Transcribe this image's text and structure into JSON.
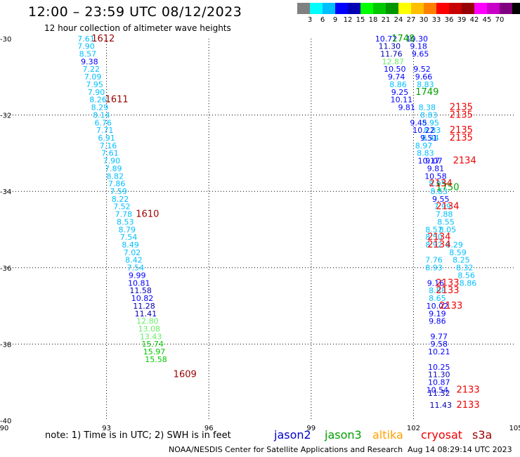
{
  "header": {
    "title": "12:00 – 23:59 UTC 08/12/2023",
    "subtitle": "12 hour collection of altimeter wave heights"
  },
  "scale": {
    "colors": [
      "#808080",
      "#00ffff",
      "#00bfff",
      "#0000ff",
      "#0000b4",
      "#00ff00",
      "#00c800",
      "#009600",
      "#ffff00",
      "#ffbf00",
      "#ff8000",
      "#ff0000",
      "#c80000",
      "#960000",
      "#ff00ff",
      "#c800c8",
      "#800080",
      "#000000"
    ],
    "labels": [
      "3",
      "6",
      "9",
      "12",
      "15",
      "18",
      "21",
      "24",
      "27",
      "30",
      "33",
      "36",
      "39",
      "42",
      "45",
      "70"
    ],
    "unit": "(ft)"
  },
  "footer": {
    "note": "note: 1) Time is in UTC; 2) SWH is in feet",
    "credit": "NOAA/NESDIS Center for Satellite Applications and Research",
    "timestamp": "Aug 14 08:29:14 UTC 2023",
    "legend": [
      {
        "name": "jason2",
        "color": "#0000cc"
      },
      {
        "name": "jason3",
        "color": "#00a000"
      },
      {
        "name": "altika",
        "color": "#ffa000"
      },
      {
        "name": "cryosat",
        "color": "#ee0000"
      },
      {
        "name": "s3a",
        "color": "#990000"
      }
    ]
  },
  "chart_data": {
    "type": "scatter",
    "xlim": [
      90,
      105
    ],
    "ylim": [
      -40,
      -30
    ],
    "x_ticks": [
      90,
      93,
      96,
      99,
      102,
      105
    ],
    "y_ticks": [
      -30,
      -32,
      -34,
      -36,
      -38,
      -40
    ],
    "x_tick_labels": [
      "90",
      "93",
      "96",
      "99",
      "102",
      "105"
    ],
    "y_tick_labels": [
      "-30",
      "-32",
      "-34",
      "-36",
      "-38",
      "-40"
    ],
    "grid": true,
    "points": [
      {
        "lon": 92.4,
        "lat": -30.07,
        "swh": "7.61",
        "color": "#00bfff"
      },
      {
        "lon": 92.4,
        "lat": -30.27,
        "swh": "7.90",
        "color": "#00bfff"
      },
      {
        "lon": 92.45,
        "lat": -30.47,
        "swh": "8.57",
        "color": "#00bfff"
      },
      {
        "lon": 92.5,
        "lat": -30.67,
        "swh": "9.38",
        "color": "#0000ff"
      },
      {
        "lon": 92.55,
        "lat": -30.87,
        "swh": "7.22",
        "color": "#00bfff"
      },
      {
        "lon": 92.6,
        "lat": -31.07,
        "swh": "7.09",
        "color": "#00bfff"
      },
      {
        "lon": 92.65,
        "lat": -31.27,
        "swh": "7.95",
        "color": "#00bfff"
      },
      {
        "lon": 92.7,
        "lat": -31.47,
        "swh": "7.90",
        "color": "#00bfff"
      },
      {
        "lon": 92.75,
        "lat": -31.67,
        "swh": "8.26",
        "color": "#00bfff"
      },
      {
        "lon": 92.8,
        "lat": -31.87,
        "swh": "8.29",
        "color": "#00bfff"
      },
      {
        "lon": 92.85,
        "lat": -32.07,
        "swh": "8.14",
        "color": "#00bfff"
      },
      {
        "lon": 92.9,
        "lat": -32.27,
        "swh": "6.76",
        "color": "#00bfff"
      },
      {
        "lon": 92.95,
        "lat": -32.47,
        "swh": "7.71",
        "color": "#00bfff"
      },
      {
        "lon": 93.0,
        "lat": -32.67,
        "swh": "6.91",
        "color": "#00bfff"
      },
      {
        "lon": 93.05,
        "lat": -32.87,
        "swh": "7.16",
        "color": "#00bfff"
      },
      {
        "lon": 93.1,
        "lat": -33.07,
        "swh": "7.61",
        "color": "#00bfff"
      },
      {
        "lon": 93.15,
        "lat": -33.27,
        "swh": "7.90",
        "color": "#00bfff"
      },
      {
        "lon": 93.2,
        "lat": -33.47,
        "swh": "7.89",
        "color": "#00bfff"
      },
      {
        "lon": 93.25,
        "lat": -33.67,
        "swh": "8.82",
        "color": "#00bfff"
      },
      {
        "lon": 93.3,
        "lat": -33.87,
        "swh": "7.86",
        "color": "#00bfff"
      },
      {
        "lon": 93.35,
        "lat": -34.07,
        "swh": "7.59",
        "color": "#00bfff"
      },
      {
        "lon": 93.4,
        "lat": -34.27,
        "swh": "8.22",
        "color": "#00bfff"
      },
      {
        "lon": 93.45,
        "lat": -34.47,
        "swh": "7.52",
        "color": "#00bfff"
      },
      {
        "lon": 93.5,
        "lat": -34.67,
        "swh": "7.78",
        "color": "#00bfff"
      },
      {
        "lon": 93.55,
        "lat": -34.87,
        "swh": "8.53",
        "color": "#00bfff"
      },
      {
        "lon": 93.6,
        "lat": -35.07,
        "swh": "8.79",
        "color": "#00bfff"
      },
      {
        "lon": 93.65,
        "lat": -35.27,
        "swh": "7.54",
        "color": "#00bfff"
      },
      {
        "lon": 93.7,
        "lat": -35.47,
        "swh": "8.49",
        "color": "#00bfff"
      },
      {
        "lon": 93.75,
        "lat": -35.67,
        "swh": "7.02",
        "color": "#00bfff"
      },
      {
        "lon": 93.8,
        "lat": -35.87,
        "swh": "8.42",
        "color": "#00bfff"
      },
      {
        "lon": 93.85,
        "lat": -36.07,
        "swh": "7.54",
        "color": "#00bfff"
      },
      {
        "lon": 93.9,
        "lat": -36.27,
        "swh": "9.99",
        "color": "#0000ff"
      },
      {
        "lon": 93.95,
        "lat": -36.47,
        "swh": "10.81",
        "color": "#0000ff"
      },
      {
        "lon": 94.0,
        "lat": -36.67,
        "swh": "11.58",
        "color": "#0000b4"
      },
      {
        "lon": 94.05,
        "lat": -36.87,
        "swh": "10.82",
        "color": "#0000ff"
      },
      {
        "lon": 94.1,
        "lat": -37.07,
        "swh": "11.28",
        "color": "#0000b4"
      },
      {
        "lon": 94.15,
        "lat": -37.27,
        "swh": "11.41",
        "color": "#0000b4"
      },
      {
        "lon": 94.2,
        "lat": -37.47,
        "swh": "12.80",
        "color": "#66ee66"
      },
      {
        "lon": 94.25,
        "lat": -37.67,
        "swh": "13.08",
        "color": "#66ee66"
      },
      {
        "lon": 94.3,
        "lat": -37.87,
        "swh": "13.43",
        "color": "#66ee66"
      },
      {
        "lon": 94.35,
        "lat": -38.07,
        "swh": "15.74",
        "color": "#00c800"
      },
      {
        "lon": 94.4,
        "lat": -38.27,
        "swh": "15.97",
        "color": "#00c800"
      },
      {
        "lon": 94.45,
        "lat": -38.47,
        "swh": "15.58",
        "color": "#00c800"
      },
      {
        "lon": 101.2,
        "lat": -30.07,
        "swh": "10.72",
        "color": "#0000ff"
      },
      {
        "lon": 101.3,
        "lat": -30.27,
        "swh": "11.30",
        "color": "#0000b4"
      },
      {
        "lon": 101.35,
        "lat": -30.47,
        "swh": "11.76",
        "color": "#0000b4"
      },
      {
        "lon": 101.4,
        "lat": -30.67,
        "swh": "12.87",
        "color": "#66ee66"
      },
      {
        "lon": 101.45,
        "lat": -30.87,
        "swh": "10.50",
        "color": "#0000ff"
      },
      {
        "lon": 101.5,
        "lat": -31.07,
        "swh": "9.74",
        "color": "#0000ff"
      },
      {
        "lon": 101.55,
        "lat": -31.27,
        "swh": "8.86",
        "color": "#00bfff"
      },
      {
        "lon": 101.6,
        "lat": -31.47,
        "swh": "9.25",
        "color": "#0000ff"
      },
      {
        "lon": 101.65,
        "lat": -31.67,
        "swh": "10.11",
        "color": "#0000ff"
      },
      {
        "lon": 101.8,
        "lat": -31.87,
        "swh": "9.81",
        "color": "#0000ff"
      },
      {
        "lon": 102.1,
        "lat": -30.07,
        "swh": "10.30",
        "color": "#0000ff"
      },
      {
        "lon": 102.15,
        "lat": -30.27,
        "swh": "9.18",
        "color": "#0000ff"
      },
      {
        "lon": 102.2,
        "lat": -30.47,
        "swh": "9.65",
        "color": "#0000ff"
      },
      {
        "lon": 102.25,
        "lat": -30.87,
        "swh": "9.52",
        "color": "#0000ff"
      },
      {
        "lon": 102.3,
        "lat": -31.07,
        "swh": "9.66",
        "color": "#0000ff"
      },
      {
        "lon": 102.35,
        "lat": -31.27,
        "swh": "8.83",
        "color": "#00bfff"
      },
      {
        "lon": 102.4,
        "lat": -31.87,
        "swh": "8.38",
        "color": "#00bfff"
      },
      {
        "lon": 102.45,
        "lat": -32.07,
        "swh": "8.83",
        "color": "#00bfff"
      },
      {
        "lon": 102.5,
        "lat": -32.27,
        "swh": "8.95",
        "color": "#00bfff"
      },
      {
        "lon": 102.55,
        "lat": -32.47,
        "swh": "8.83",
        "color": "#00bfff"
      },
      {
        "lon": 102.5,
        "lat": -32.67,
        "swh": "8.44",
        "color": "#00bfff"
      },
      {
        "lon": 102.6,
        "lat": -33.27,
        "swh": "9.07",
        "color": "#0000ff"
      },
      {
        "lon": 102.65,
        "lat": -33.47,
        "swh": "9.81",
        "color": "#0000ff"
      },
      {
        "lon": 102.75,
        "lat": -34.07,
        "swh": "8.63",
        "color": "#00bfff"
      },
      {
        "lon": 102.8,
        "lat": -34.27,
        "swh": "9.55",
        "color": "#0000ff"
      },
      {
        "lon": 102.85,
        "lat": -34.47,
        "swh": "7.99",
        "color": "#00bfff"
      },
      {
        "lon": 102.9,
        "lat": -34.67,
        "swh": "7.88",
        "color": "#00bfff"
      },
      {
        "lon": 102.95,
        "lat": -34.87,
        "swh": "8.55",
        "color": "#00bfff"
      },
      {
        "lon": 103.0,
        "lat": -35.07,
        "swh": "8.05",
        "color": "#00bfff"
      },
      {
        "lon": 103.2,
        "lat": -35.47,
        "swh": "8.29",
        "color": "#00bfff"
      },
      {
        "lon": 103.3,
        "lat": -35.67,
        "swh": "8.59",
        "color": "#00bfff"
      },
      {
        "lon": 103.4,
        "lat": -35.87,
        "swh": "8.25",
        "color": "#00bfff"
      },
      {
        "lon": 103.5,
        "lat": -36.07,
        "swh": "8.32",
        "color": "#00bfff"
      },
      {
        "lon": 103.55,
        "lat": -36.27,
        "swh": "8.56",
        "color": "#00bfff"
      },
      {
        "lon": 103.6,
        "lat": -36.47,
        "swh": "8.86",
        "color": "#00bfff"
      },
      {
        "lon": 102.45,
        "lat": -32.67,
        "swh": "9.51",
        "color": "#0000ff"
      },
      {
        "lon": 102.3,
        "lat": -32.47,
        "swh": "10.22",
        "color": "#0000ff"
      },
      {
        "lon": 102.15,
        "lat": -32.27,
        "swh": "9.45",
        "color": "#0000ff"
      },
      {
        "lon": 102.3,
        "lat": -32.87,
        "swh": "8.97",
        "color": "#00bfff"
      },
      {
        "lon": 102.35,
        "lat": -33.07,
        "swh": "8.83",
        "color": "#00bfff"
      },
      {
        "lon": 102.45,
        "lat": -33.27,
        "swh": "10.17",
        "color": "#0000ff"
      },
      {
        "lon": 102.65,
        "lat": -33.67,
        "swh": "10.58",
        "color": "#0000ff"
      },
      {
        "lon": 102.7,
        "lat": -33.87,
        "swh": "8.95",
        "color": "#00bfff"
      },
      {
        "lon": 102.6,
        "lat": -35.07,
        "swh": "8.57",
        "color": "#00bfff"
      },
      {
        "lon": 102.6,
        "lat": -35.27,
        "swh": "8.50",
        "color": "#00bfff"
      },
      {
        "lon": 102.6,
        "lat": -35.47,
        "swh": "8.92",
        "color": "#00bfff"
      },
      {
        "lon": 102.6,
        "lat": -35.87,
        "swh": "7.76",
        "color": "#00bfff"
      },
      {
        "lon": 102.6,
        "lat": -36.07,
        "swh": "8.93",
        "color": "#00bfff"
      },
      {
        "lon": 102.65,
        "lat": -36.47,
        "swh": "9.16",
        "color": "#0000ff"
      },
      {
        "lon": 102.7,
        "lat": -36.67,
        "swh": "8.88",
        "color": "#00bfff"
      },
      {
        "lon": 102.7,
        "lat": -36.87,
        "swh": "8.65",
        "color": "#00bfff"
      },
      {
        "lon": 102.7,
        "lat": -37.07,
        "swh": "10.02",
        "color": "#0000ff"
      },
      {
        "lon": 102.7,
        "lat": -37.27,
        "swh": "9.19",
        "color": "#0000ff"
      },
      {
        "lon": 102.7,
        "lat": -37.47,
        "swh": "9.86",
        "color": "#0000ff"
      },
      {
        "lon": 102.75,
        "lat": -37.87,
        "swh": "9.77",
        "color": "#0000ff"
      },
      {
        "lon": 102.75,
        "lat": -38.07,
        "swh": "9.58",
        "color": "#0000ff"
      },
      {
        "lon": 102.75,
        "lat": -38.27,
        "swh": "10.21",
        "color": "#0000ff"
      },
      {
        "lon": 102.75,
        "lat": -38.67,
        "swh": "10.25",
        "color": "#0000ff"
      },
      {
        "lon": 102.75,
        "lat": -38.87,
        "swh": "11.30",
        "color": "#0000b4"
      },
      {
        "lon": 102.75,
        "lat": -39.07,
        "swh": "10.87",
        "color": "#0000ff"
      },
      {
        "lon": 102.7,
        "lat": -39.27,
        "swh": "10.54",
        "color": "#0000ff"
      },
      {
        "lon": 102.75,
        "lat": -39.36,
        "swh": "11.32",
        "color": "#0000b4"
      },
      {
        "lon": 102.8,
        "lat": -39.67,
        "swh": "11.43",
        "color": "#0000b4"
      }
    ],
    "time_labels": [
      {
        "lon": 92.9,
        "lat": -30.07,
        "text": "1612",
        "color": "#990000"
      },
      {
        "lon": 93.3,
        "lat": -31.67,
        "text": "1611",
        "color": "#990000"
      },
      {
        "lon": 94.2,
        "lat": -34.67,
        "text": "1610",
        "color": "#990000"
      },
      {
        "lon": 95.3,
        "lat": -38.87,
        "text": "1609",
        "color": "#990000"
      },
      {
        "lon": 101.7,
        "lat": -30.07,
        "text": "1748",
        "color": "#00a000"
      },
      {
        "lon": 102.4,
        "lat": -31.47,
        "text": "1749",
        "color": "#00a000"
      },
      {
        "lon": 103.0,
        "lat": -33.97,
        "text": "1750",
        "color": "#00a000"
      },
      {
        "lon": 103.4,
        "lat": -31.87,
        "text": "2135",
        "color": "#ee0000"
      },
      {
        "lon": 103.4,
        "lat": -32.07,
        "text": "2135",
        "color": "#ee0000"
      },
      {
        "lon": 103.4,
        "lat": -32.47,
        "text": "2135",
        "color": "#ee0000"
      },
      {
        "lon": 103.4,
        "lat": -32.67,
        "text": "2135",
        "color": "#ee0000"
      },
      {
        "lon": 103.5,
        "lat": -33.27,
        "text": "2134",
        "color": "#ee0000"
      },
      {
        "lon": 102.8,
        "lat": -33.87,
        "text": "2134",
        "color": "#ee0000"
      },
      {
        "lon": 103.0,
        "lat": -34.47,
        "text": "2134",
        "color": "#ee0000"
      },
      {
        "lon": 102.75,
        "lat": -35.27,
        "text": "2134",
        "color": "#ee0000"
      },
      {
        "lon": 102.75,
        "lat": -35.47,
        "text": "2134",
        "color": "#ee0000"
      },
      {
        "lon": 103.0,
        "lat": -36.47,
        "text": "2133",
        "color": "#ee0000"
      },
      {
        "lon": 103.0,
        "lat": -36.67,
        "text": "2133",
        "color": "#ee0000"
      },
      {
        "lon": 103.1,
        "lat": -37.07,
        "text": "2133",
        "color": "#ee0000"
      },
      {
        "lon": 103.6,
        "lat": -39.27,
        "text": "2133",
        "color": "#ee0000"
      },
      {
        "lon": 103.6,
        "lat": -39.67,
        "text": "2133",
        "color": "#ee0000"
      }
    ]
  }
}
